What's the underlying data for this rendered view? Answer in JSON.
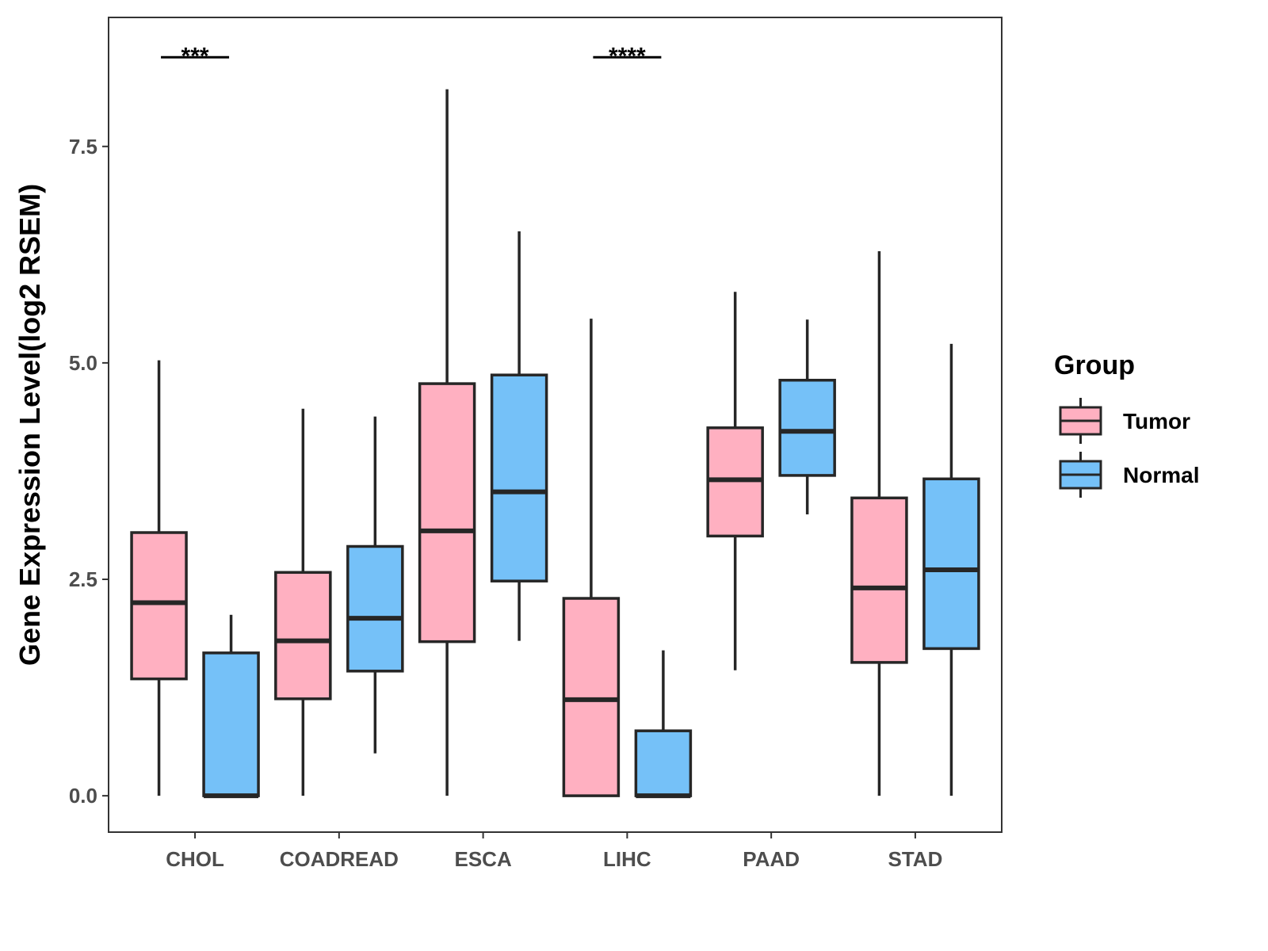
{
  "chart_data": {
    "type": "boxplot",
    "title": "",
    "xlabel": "",
    "ylabel": "Gene Expression Level(log2 RSEM)",
    "ylim": [
      -0.42,
      8.99
    ],
    "yticks": [
      "0.0",
      "2.5",
      "5.0",
      "7.5"
    ],
    "ytick_values": [
      0,
      2.5,
      5,
      7.5
    ],
    "grid": false,
    "categories": [
      "CHOL",
      "COADREAD",
      "ESCA",
      "LIHC",
      "PAAD",
      "STAD"
    ],
    "legend": {
      "title": "Group",
      "placement": "right"
    },
    "series": [
      {
        "name": "Tumor",
        "color": "#FFB0C1",
        "boxes": [
          {
            "min": 0,
            "q1": 1.35,
            "median": 2.23,
            "q3": 3.04,
            "max": 5.03
          },
          {
            "min": 0,
            "q1": 1.12,
            "median": 1.79,
            "q3": 2.58,
            "max": 4.47
          },
          {
            "min": 0,
            "q1": 1.78,
            "median": 3.06,
            "q3": 4.76,
            "max": 8.16
          },
          {
            "min": 0,
            "q1": 0,
            "median": 1.11,
            "q3": 2.28,
            "max": 5.51
          },
          {
            "min": 1.45,
            "q1": 3.0,
            "median": 3.65,
            "q3": 4.25,
            "max": 5.82
          },
          {
            "min": 0,
            "q1": 1.54,
            "median": 2.4,
            "q3": 3.44,
            "max": 6.29
          }
        ]
      },
      {
        "name": "Normal",
        "color": "#75C1F8",
        "boxes": [
          {
            "min": 0,
            "q1": 0,
            "median": 0,
            "q3": 1.65,
            "max": 2.09
          },
          {
            "min": 0.49,
            "q1": 1.44,
            "median": 2.05,
            "q3": 2.88,
            "max": 4.38
          },
          {
            "min": 1.79,
            "q1": 2.48,
            "median": 3.51,
            "q3": 4.86,
            "max": 6.52
          },
          {
            "min": 0,
            "q1": 0,
            "median": 0,
            "q3": 0.75,
            "max": 1.68
          },
          {
            "min": 3.25,
            "q1": 3.7,
            "median": 4.21,
            "q3": 4.8,
            "max": 5.5
          },
          {
            "min": 0,
            "q1": 1.7,
            "median": 2.61,
            "q3": 3.66,
            "max": 5.22
          }
        ]
      }
    ],
    "annotations": [
      {
        "category": "CHOL",
        "label": "***",
        "y": 8.53
      },
      {
        "category": "LIHC",
        "label": "****",
        "y": 8.53
      }
    ]
  }
}
